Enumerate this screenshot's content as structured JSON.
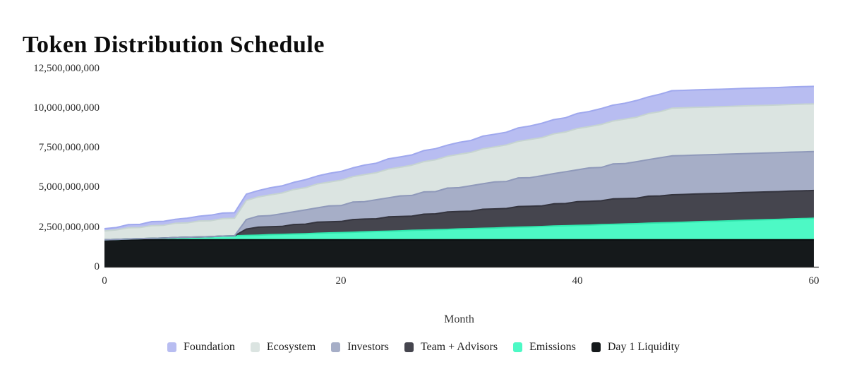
{
  "title": "Token Distribution Schedule",
  "chart_data": {
    "type": "area",
    "stacked": true,
    "title": "Token Distribution Schedule",
    "xlabel": "Month",
    "ylabel": "",
    "grid": false,
    "legend_position": "bottom",
    "x_range": [
      0,
      60
    ],
    "y_range": [
      0,
      12500000000
    ],
    "x_tick_values": [
      0,
      20,
      40,
      60
    ],
    "x_tick_labels": [
      "0",
      "20",
      "40",
      "60"
    ],
    "y_tick_values": [
      12500000000,
      10000000000,
      7500000000,
      5000000000,
      2500000000,
      0
    ],
    "y_tick_labels": [
      "12,500,000,000",
      "10,000,000,000",
      "7,500,000,000",
      "5,000,000,000",
      "2,500,000,000",
      "0"
    ],
    "value_unit": "tokens, values_billions are in billions of tokens",
    "months": [
      0,
      1,
      2,
      3,
      4,
      5,
      6,
      7,
      8,
      9,
      10,
      11,
      12,
      13,
      14,
      15,
      16,
      17,
      18,
      19,
      20,
      21,
      22,
      23,
      24,
      25,
      26,
      27,
      28,
      29,
      30,
      31,
      32,
      33,
      34,
      35,
      36,
      37,
      38,
      39,
      40,
      41,
      42,
      43,
      44,
      45,
      46,
      47,
      48,
      49,
      50,
      51,
      52,
      53,
      54,
      55,
      56,
      57,
      58,
      59,
      60
    ],
    "series": [
      {
        "label": "Day 1 Liquidity",
        "color": "#15191b",
        "stroke": "#0a0e0f",
        "values_billions": [
          1.7,
          1.7,
          1.7,
          1.7,
          1.7,
          1.7,
          1.7,
          1.7,
          1.7,
          1.7,
          1.7,
          1.7,
          1.7,
          1.7,
          1.7,
          1.7,
          1.7,
          1.7,
          1.7,
          1.7,
          1.7,
          1.7,
          1.7,
          1.7,
          1.7,
          1.7,
          1.7,
          1.7,
          1.7,
          1.7,
          1.7,
          1.7,
          1.7,
          1.7,
          1.7,
          1.7,
          1.7,
          1.7,
          1.7,
          1.7,
          1.7,
          1.7,
          1.7,
          1.7,
          1.7,
          1.7,
          1.7,
          1.7,
          1.7,
          1.7,
          1.7,
          1.7,
          1.7,
          1.7,
          1.7,
          1.7,
          1.7,
          1.7,
          1.7,
          1.7,
          1.7
        ]
      },
      {
        "label": "Emissions",
        "color": "#4df9c5",
        "stroke": "#30e8ae",
        "values_billions": [
          0,
          0.02,
          0.05,
          0.07,
          0.09,
          0.11,
          0.14,
          0.16,
          0.18,
          0.2,
          0.23,
          0.25,
          0.27,
          0.29,
          0.32,
          0.34,
          0.36,
          0.38,
          0.41,
          0.43,
          0.45,
          0.47,
          0.5,
          0.52,
          0.54,
          0.56,
          0.59,
          0.61,
          0.63,
          0.65,
          0.68,
          0.7,
          0.72,
          0.74,
          0.77,
          0.79,
          0.81,
          0.83,
          0.86,
          0.88,
          0.9,
          0.92,
          0.95,
          0.97,
          0.99,
          1.01,
          1.04,
          1.06,
          1.08,
          1.1,
          1.13,
          1.15,
          1.17,
          1.19,
          1.22,
          1.24,
          1.26,
          1.28,
          1.31,
          1.33,
          1.35
        ]
      },
      {
        "label": "Team + Advisors",
        "color": "#45454e",
        "stroke": "#34343e",
        "values_billions": [
          0,
          0,
          0,
          0,
          0,
          0,
          0,
          0,
          0,
          0,
          0,
          0,
          0.4,
          0.5,
          0.5,
          0.5,
          0.6,
          0.6,
          0.7,
          0.7,
          0.7,
          0.8,
          0.8,
          0.8,
          0.9,
          0.9,
          0.9,
          1,
          1,
          1.1,
          1.1,
          1.1,
          1.2,
          1.2,
          1.2,
          1.3,
          1.3,
          1.3,
          1.4,
          1.4,
          1.5,
          1.5,
          1.5,
          1.6,
          1.6,
          1.6,
          1.7,
          1.7,
          1.75,
          1.75,
          1.75,
          1.75,
          1.75,
          1.75,
          1.75,
          1.75,
          1.75,
          1.75,
          1.75,
          1.75,
          1.75
        ]
      },
      {
        "label": "Investors",
        "color": "#a6aec7",
        "stroke": "#8f99ba",
        "values_billions": [
          0,
          0,
          0,
          0,
          0,
          0,
          0,
          0,
          0,
          0,
          0,
          0,
          0.6,
          0.7,
          0.7,
          0.8,
          0.8,
          0.9,
          0.9,
          1,
          1,
          1.1,
          1.1,
          1.2,
          1.2,
          1.3,
          1.3,
          1.4,
          1.4,
          1.5,
          1.5,
          1.6,
          1.6,
          1.7,
          1.7,
          1.8,
          1.8,
          1.9,
          1.9,
          2,
          2,
          2.1,
          2.1,
          2.2,
          2.2,
          2.3,
          2.3,
          2.4,
          2.45,
          2.45,
          2.45,
          2.45,
          2.45,
          2.45,
          2.45,
          2.45,
          2.45,
          2.45,
          2.45,
          2.45,
          2.45
        ]
      },
      {
        "label": "Ecosystem",
        "color": "#dbe4e1",
        "stroke": "#c6d4d0",
        "values_billions": [
          0.55,
          0.6,
          0.7,
          0.7,
          0.8,
          0.8,
          0.9,
          0.9,
          1,
          1,
          1.1,
          1.1,
          1.2,
          1.2,
          1.3,
          1.3,
          1.4,
          1.4,
          1.5,
          1.5,
          1.6,
          1.6,
          1.7,
          1.7,
          1.8,
          1.8,
          1.9,
          1.9,
          2,
          2,
          2.1,
          2.1,
          2.2,
          2.2,
          2.3,
          2.3,
          2.4,
          2.4,
          2.5,
          2.5,
          2.6,
          2.6,
          2.7,
          2.7,
          2.8,
          2.8,
          2.9,
          2.9,
          3,
          3,
          3,
          3,
          3,
          3,
          3,
          3,
          3,
          3,
          3,
          3,
          3
        ]
      },
      {
        "label": "Foundation",
        "color": "#b8bdf1",
        "stroke": "#9fa8ee",
        "values_billions": [
          0.15,
          0.15,
          0.2,
          0.2,
          0.25,
          0.25,
          0.25,
          0.3,
          0.3,
          0.35,
          0.35,
          0.35,
          0.4,
          0.4,
          0.45,
          0.45,
          0.45,
          0.5,
          0.5,
          0.55,
          0.55,
          0.55,
          0.6,
          0.6,
          0.65,
          0.65,
          0.65,
          0.7,
          0.7,
          0.7,
          0.75,
          0.75,
          0.8,
          0.8,
          0.8,
          0.85,
          0.85,
          0.9,
          0.9,
          0.9,
          0.95,
          0.95,
          1,
          1,
          1,
          1.05,
          1.05,
          1.1,
          1.1,
          1.1,
          1.1,
          1.1,
          1.1,
          1.1,
          1.1,
          1.1,
          1.1,
          1.1,
          1.1,
          1.1,
          1.1
        ]
      }
    ],
    "legend_order": [
      "Foundation",
      "Ecosystem",
      "Investors",
      "Team + Advisors",
      "Emissions",
      "Day 1 Liquidity"
    ]
  }
}
